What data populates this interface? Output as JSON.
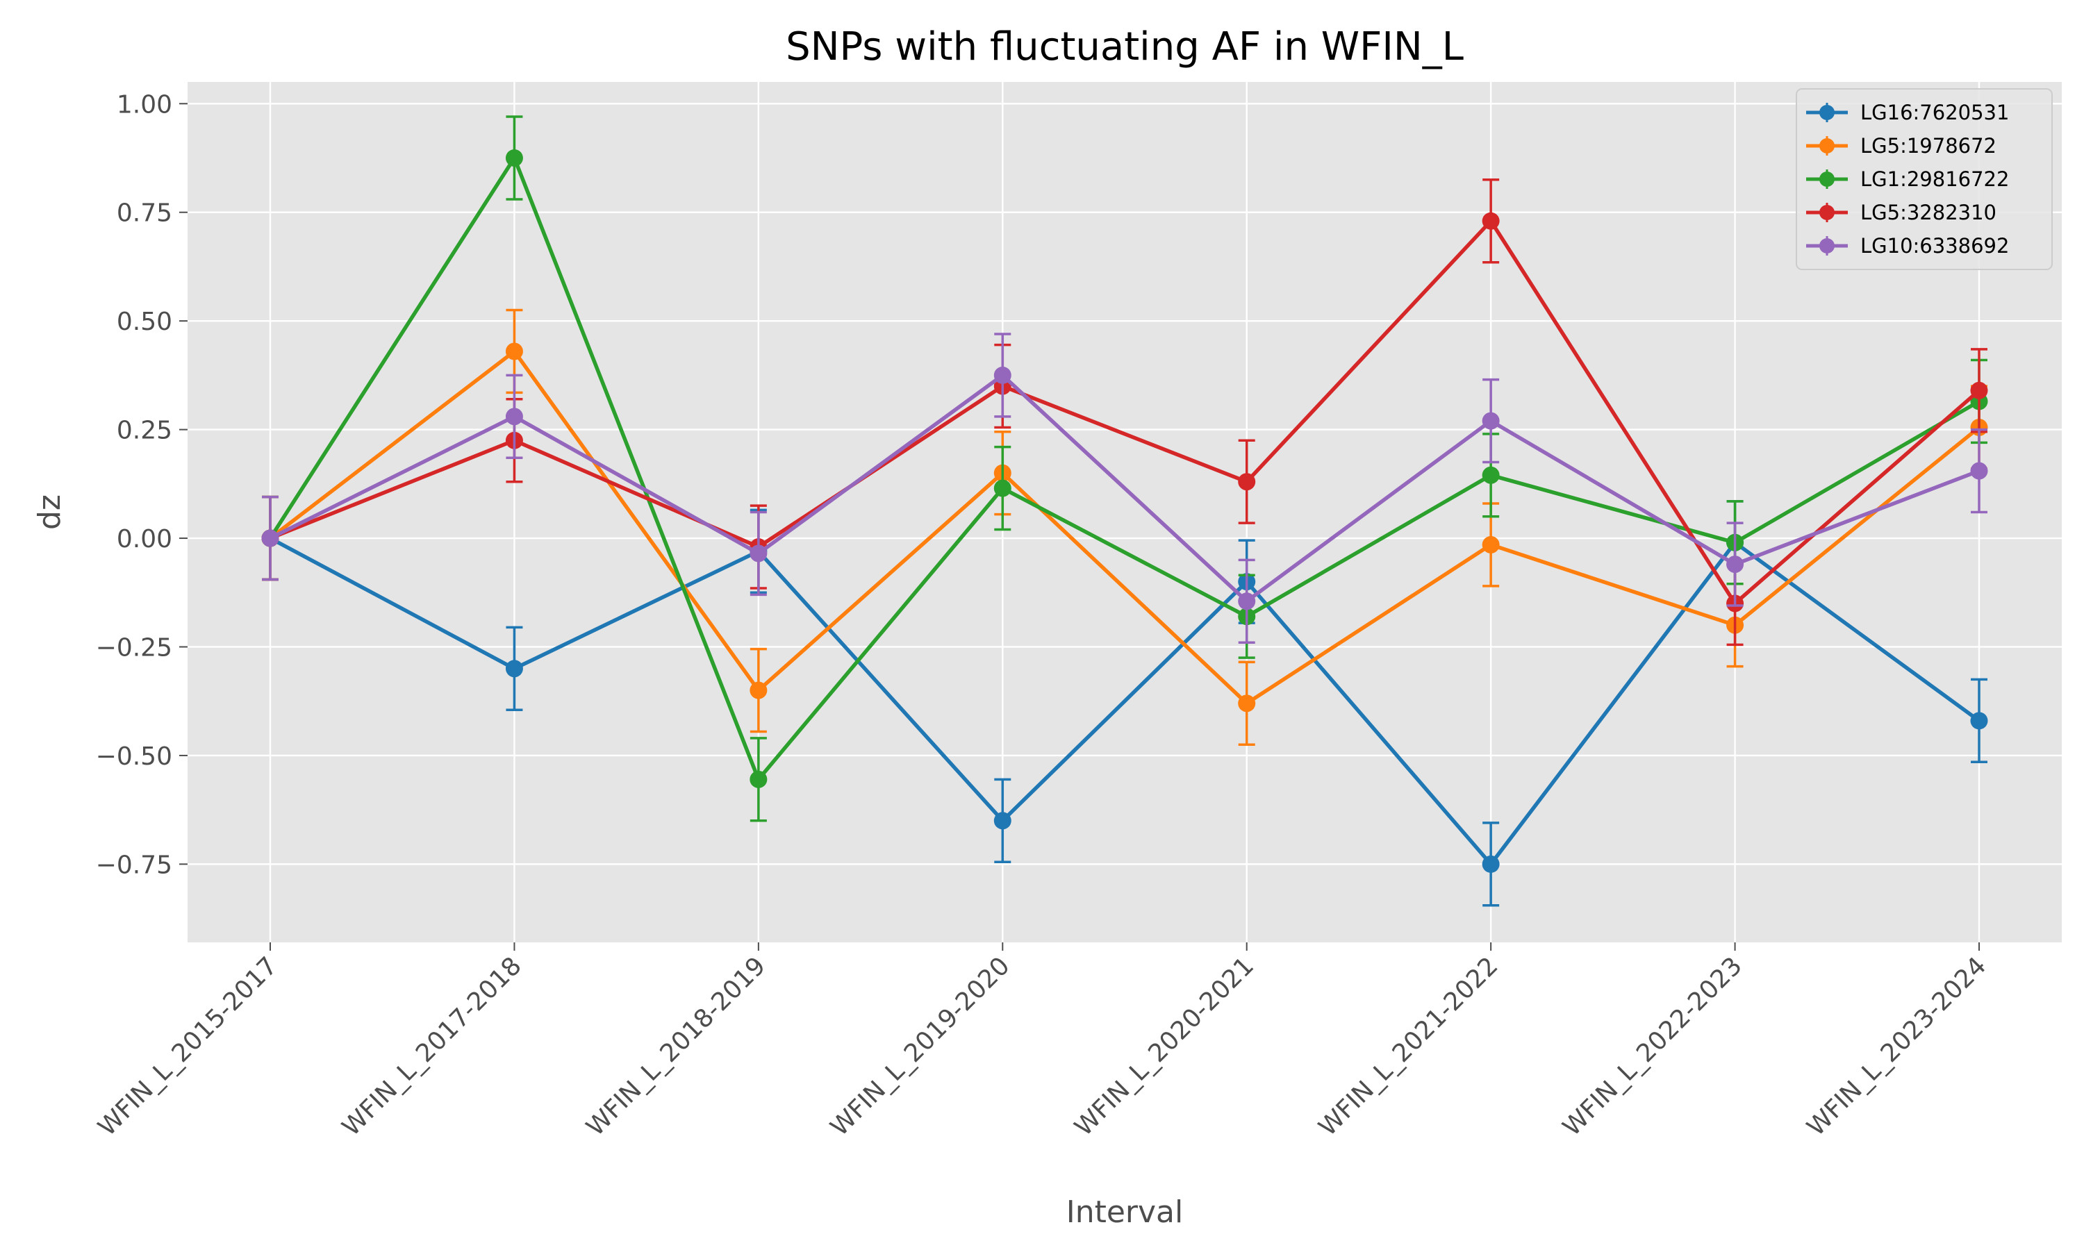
{
  "chart_data": {
    "type": "line",
    "title": "SNPs with fluctuating AF in WFIN_L",
    "xlabel": "Interval",
    "ylabel": "dz",
    "categories": [
      "WFIN_L_2015-2017",
      "WFIN_L_2017-2018",
      "WFIN_L_2018-2019",
      "WFIN_L_2019-2020",
      "WFIN_L_2020-2021",
      "WFIN_L_2021-2022",
      "WFIN_L_2022-2023",
      "WFIN_L_2023-2024"
    ],
    "ylim": [
      -0.93,
      1.05
    ],
    "yticks": [
      -0.75,
      -0.5,
      -0.25,
      0.0,
      0.25,
      0.5,
      0.75,
      1.0
    ],
    "ytick_labels": [
      "−0.75",
      "−0.50",
      "−0.25",
      "0.00",
      "0.25",
      "0.50",
      "0.75",
      "1.00"
    ],
    "grid": true,
    "legend_position": "top-right",
    "error_bar": 0.095,
    "series": [
      {
        "name": "LG16:7620531",
        "color": "#1f77b4",
        "values": [
          0.0,
          -0.3,
          -0.03,
          -0.65,
          -0.1,
          -0.75,
          -0.01,
          -0.42
        ]
      },
      {
        "name": "LG5:1978672",
        "color": "#ff7f0e",
        "values": [
          0.0,
          0.43,
          -0.35,
          0.15,
          -0.38,
          -0.015,
          -0.2,
          0.255
        ]
      },
      {
        "name": "LG1:29816722",
        "color": "#2ca02c",
        "values": [
          0.0,
          0.875,
          -0.555,
          0.115,
          -0.18,
          0.145,
          -0.01,
          0.315
        ]
      },
      {
        "name": "LG5:3282310",
        "color": "#d62728",
        "values": [
          0.0,
          0.225,
          -0.02,
          0.35,
          0.13,
          0.73,
          -0.15,
          0.34
        ]
      },
      {
        "name": "LG10:6338692",
        "color": "#9467bd",
        "values": [
          0.0,
          0.28,
          -0.035,
          0.375,
          -0.145,
          0.27,
          -0.06,
          0.155
        ]
      }
    ]
  }
}
